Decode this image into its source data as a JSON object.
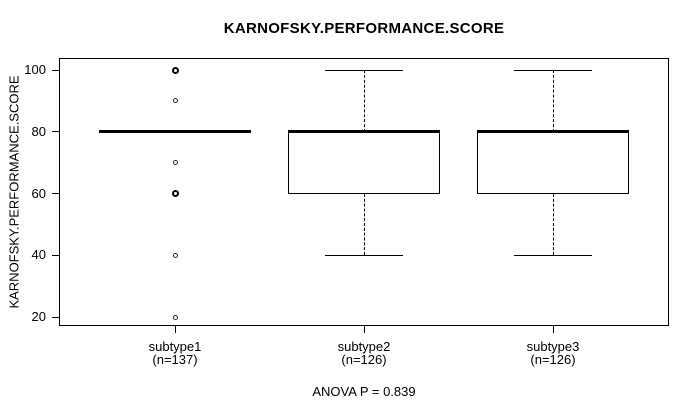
{
  "chart_data": {
    "type": "boxplot",
    "title": "KARNOFSKY.PERFORMANCE.SCORE",
    "ylabel": "KARNOFSKY.PERFORMANCE.SCORE",
    "xlabel": "",
    "ylim": [
      20,
      100
    ],
    "yticks": [
      20,
      40,
      60,
      80,
      100
    ],
    "grid": false,
    "legend": "none",
    "annotation": "ANOVA P = 0.839",
    "groups": [
      {
        "label": "subtype1",
        "n_label": "(n=137)",
        "n": 137,
        "median": 80,
        "q1": 80,
        "q3": 80,
        "whisker_low": 80,
        "whisker_high": 80,
        "outliers": [
          100,
          90,
          70,
          60,
          40,
          20
        ],
        "bold_outliers": [
          100,
          60
        ]
      },
      {
        "label": "subtype2",
        "n_label": "(n=126)",
        "n": 126,
        "median": 80,
        "q1": 60,
        "q3": 80,
        "whisker_low": 40,
        "whisker_high": 100,
        "outliers": [],
        "bold_outliers": []
      },
      {
        "label": "subtype3",
        "n_label": "(n=126)",
        "n": 126,
        "median": 80,
        "q1": 60,
        "q3": 80,
        "whisker_low": 40,
        "whisker_high": 100,
        "outliers": [],
        "bold_outliers": []
      }
    ]
  }
}
